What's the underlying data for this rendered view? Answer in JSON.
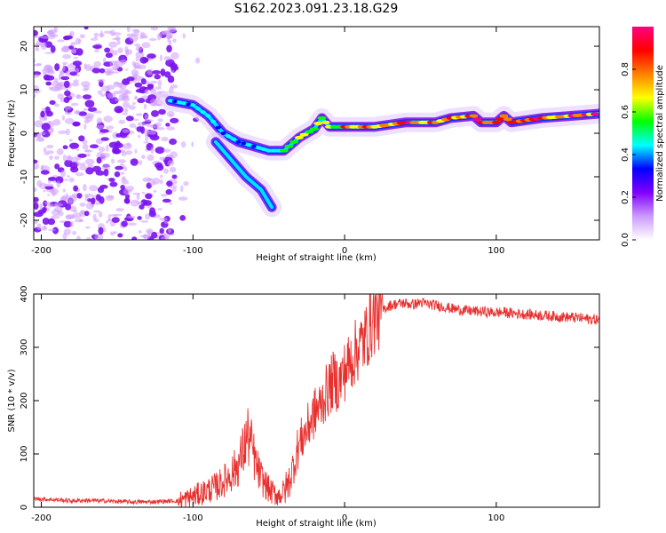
{
  "title": "S162.2023.091.23.18.G29",
  "chart_data": [
    {
      "type": "heatmap",
      "xlabel": "Height of straight line (km)",
      "ylabel": "Frequency (Hz)",
      "xlim": [
        -205,
        168
      ],
      "ylim": [
        -24.5,
        24.5
      ],
      "x_ticks": [
        -200,
        -100,
        0,
        100
      ],
      "y_ticks": [
        -20,
        -10,
        0,
        10,
        20
      ],
      "colorbar": {
        "label": "Normalized spectral amplitude",
        "range": [
          0.0,
          1.0
        ],
        "ticks": [
          0.0,
          0.2,
          0.4,
          0.6,
          0.8
        ],
        "colormap": "rainbow",
        "colors": [
          "#ffffff",
          "#cc99ff",
          "#8000ff",
          "#0000ff",
          "#00ffff",
          "#00ff00",
          "#ffff00",
          "#ff8000",
          "#ff0000",
          "#ff007f"
        ]
      },
      "grid": false,
      "ridge": [
        {
          "x": -115,
          "y": 7.5
        },
        {
          "x": -100,
          "y": 6.5
        },
        {
          "x": -90,
          "y": 4
        },
        {
          "x": -80,
          "y": 0
        },
        {
          "x": -70,
          "y": -2
        },
        {
          "x": -60,
          "y": -3
        },
        {
          "x": -50,
          "y": -4
        },
        {
          "x": -40,
          "y": -4
        },
        {
          "x": -30,
          "y": -1
        },
        {
          "x": -20,
          "y": 1
        },
        {
          "x": -15,
          "y": 3.5
        },
        {
          "x": -10,
          "y": 1.5
        },
        {
          "x": 0,
          "y": 1.5
        },
        {
          "x": 20,
          "y": 1.5
        },
        {
          "x": 40,
          "y": 2.5
        },
        {
          "x": 60,
          "y": 2.5
        },
        {
          "x": 70,
          "y": 3.5
        },
        {
          "x": 85,
          "y": 4
        },
        {
          "x": 90,
          "y": 2.5
        },
        {
          "x": 100,
          "y": 2.5
        },
        {
          "x": 105,
          "y": 4
        },
        {
          "x": 110,
          "y": 2.5
        },
        {
          "x": 130,
          "y": 3.5
        },
        {
          "x": 150,
          "y": 4
        },
        {
          "x": 168,
          "y": 4.5
        }
      ],
      "branch": [
        {
          "x": -85,
          "y": -2
        },
        {
          "x": -75,
          "y": -6
        },
        {
          "x": -65,
          "y": -10
        },
        {
          "x": -55,
          "y": -13
        },
        {
          "x": -48,
          "y": -17
        }
      ]
    },
    {
      "type": "line",
      "xlabel": "Height of straight line (km)",
      "ylabel": "SNR (10 * v/v)",
      "xlim": [
        -205,
        168
      ],
      "ylim": [
        0,
        400
      ],
      "x_ticks": [
        -200,
        -100,
        0,
        100
      ],
      "y_ticks": [
        0,
        100,
        200,
        300,
        400
      ],
      "color": "#e8312f",
      "grid": false,
      "series": [
        {
          "x": [
            -205,
            -190,
            -180,
            -170,
            -160,
            -150,
            -140,
            -130,
            -120,
            -110,
            -105,
            -100,
            -95,
            -90,
            -85,
            -80,
            -75,
            -70,
            -67,
            -64,
            -61,
            -58,
            -55,
            -52,
            -49,
            -46,
            -43,
            -40,
            -37,
            -34,
            -31,
            -28,
            -25,
            -22,
            -19,
            -16,
            -13,
            -10,
            -7,
            -4,
            -1,
            2,
            5,
            8,
            11,
            14,
            17,
            20,
            23,
            26,
            29,
            32,
            35,
            40,
            45,
            50,
            55,
            60,
            65,
            70,
            75,
            80,
            85,
            90,
            95,
            100,
            105,
            110,
            115,
            120,
            125,
            130,
            135,
            140,
            145,
            150,
            155,
            160,
            168
          ],
          "values": [
            16,
            14,
            12,
            13,
            12,
            11,
            10,
            10,
            11,
            12,
            15,
            20,
            26,
            32,
            38,
            48,
            62,
            80,
            105,
            135,
            110,
            75,
            55,
            42,
            30,
            25,
            22,
            30,
            45,
            75,
            110,
            130,
            145,
            165,
            180,
            190,
            210,
            225,
            240,
            230,
            250,
            265,
            280,
            295,
            305,
            320,
            340,
            358,
            365,
            372,
            378,
            380,
            382,
            383,
            380,
            384,
            381,
            379,
            376,
            373,
            371,
            369,
            368,
            367,
            366,
            365,
            366,
            364,
            363,
            362,
            361,
            360,
            359,
            358,
            357,
            356,
            355,
            353,
            352
          ]
        }
      ]
    }
  ]
}
